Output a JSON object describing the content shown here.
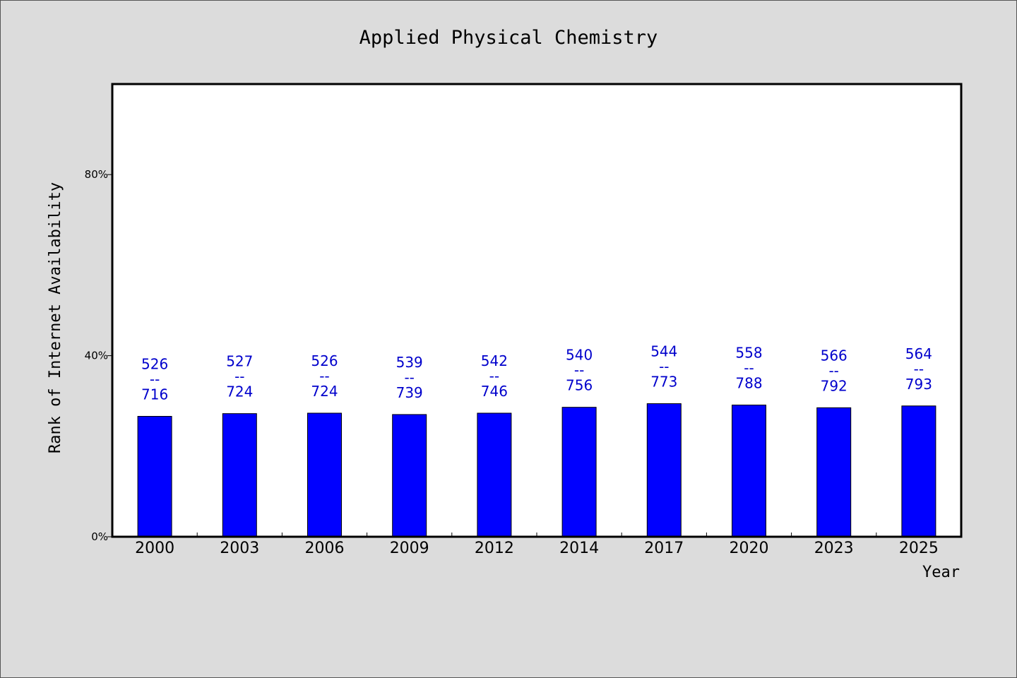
{
  "chart_data": {
    "type": "bar",
    "title": "Applied Physical Chemistry",
    "xlabel": "Year",
    "ylabel": "Rank of Internet Availability",
    "ylim": [
      0,
      100
    ],
    "yticks": [
      0,
      40,
      80
    ],
    "ytick_labels": [
      "0%",
      "40%",
      "80%"
    ],
    "grid": false,
    "categories": [
      "2000",
      "2003",
      "2006",
      "2009",
      "2012",
      "2014",
      "2017",
      "2020",
      "2023",
      "2025"
    ],
    "values": [
      26.6,
      27.2,
      27.3,
      27.0,
      27.3,
      28.6,
      29.4,
      29.1,
      28.5,
      28.9
    ],
    "data_labels": [
      [
        "526",
        "--",
        "716"
      ],
      [
        "527",
        "--",
        "724"
      ],
      [
        "526",
        "--",
        "724"
      ],
      [
        "539",
        "--",
        "739"
      ],
      [
        "542",
        "--",
        "746"
      ],
      [
        "540",
        "--",
        "756"
      ],
      [
        "544",
        "--",
        "773"
      ],
      [
        "558",
        "--",
        "788"
      ],
      [
        "566",
        "--",
        "792"
      ],
      [
        "564",
        "--",
        "793"
      ]
    ],
    "colors": {
      "bar": "#0000ff",
      "bar_edge": "#000000",
      "data_label": "#0000cc",
      "plot_bg": "#ffffff",
      "page_bg": "#dcdcdc"
    }
  }
}
